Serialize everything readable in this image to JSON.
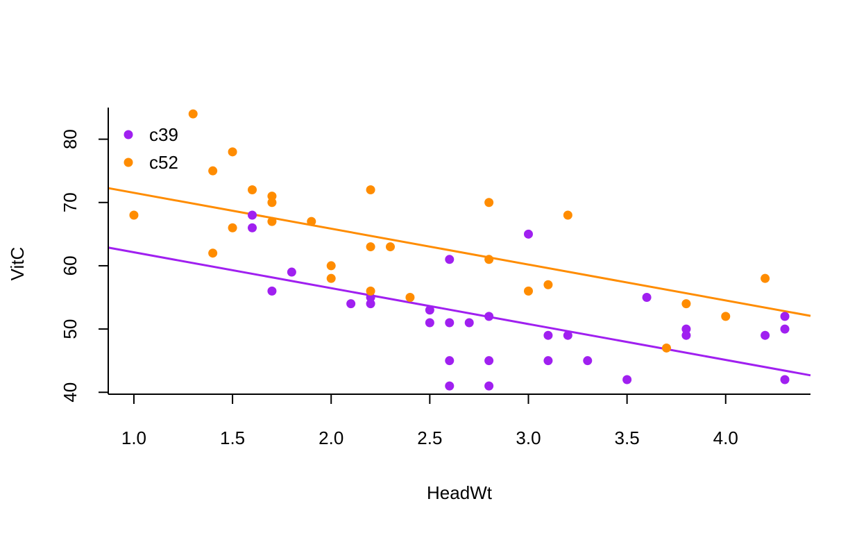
{
  "chart_data": {
    "type": "scatter",
    "title": "",
    "xlabel": "HeadWt",
    "ylabel": "VitC",
    "xlim": [
      0.87,
      4.43
    ],
    "ylim": [
      39.7,
      85.0
    ],
    "xticks": [
      "1.0",
      "1.5",
      "2.0",
      "2.5",
      "3.0",
      "3.5",
      "4.0"
    ],
    "yticks": [
      "40",
      "50",
      "60",
      "70",
      "80"
    ],
    "grid": false,
    "legend_position": "top-left",
    "series": [
      {
        "name": "c39",
        "color": "#A020F0",
        "points": [
          [
            1.6,
            68
          ],
          [
            1.6,
            66
          ],
          [
            1.7,
            56
          ],
          [
            1.8,
            59
          ],
          [
            2.1,
            54
          ],
          [
            2.2,
            54
          ],
          [
            2.2,
            55
          ],
          [
            2.5,
            53
          ],
          [
            2.5,
            51
          ],
          [
            2.6,
            61
          ],
          [
            2.6,
            51
          ],
          [
            2.6,
            45
          ],
          [
            2.6,
            41
          ],
          [
            2.7,
            51
          ],
          [
            2.8,
            52
          ],
          [
            2.8,
            45
          ],
          [
            2.8,
            41
          ],
          [
            3.0,
            65
          ],
          [
            3.1,
            49
          ],
          [
            3.1,
            45
          ],
          [
            3.2,
            49
          ],
          [
            3.3,
            45
          ],
          [
            3.5,
            42
          ],
          [
            3.6,
            55
          ],
          [
            3.8,
            50
          ],
          [
            3.8,
            49
          ],
          [
            4.2,
            49
          ],
          [
            4.3,
            52
          ],
          [
            4.3,
            50
          ],
          [
            4.3,
            42
          ]
        ],
        "fit": {
          "intercept": 67.8,
          "slope": -5.67
        }
      },
      {
        "name": "c52",
        "color": "#FF8C00",
        "points": [
          [
            1.0,
            68
          ],
          [
            1.3,
            84
          ],
          [
            1.4,
            75
          ],
          [
            1.4,
            62
          ],
          [
            1.5,
            78
          ],
          [
            1.5,
            66
          ],
          [
            1.6,
            72
          ],
          [
            1.7,
            71
          ],
          [
            1.7,
            70
          ],
          [
            1.7,
            67
          ],
          [
            1.9,
            67
          ],
          [
            2.0,
            60
          ],
          [
            2.0,
            58
          ],
          [
            2.2,
            72
          ],
          [
            2.2,
            63
          ],
          [
            2.2,
            56
          ],
          [
            2.3,
            63
          ],
          [
            2.4,
            55
          ],
          [
            2.8,
            70
          ],
          [
            2.8,
            61
          ],
          [
            3.0,
            56
          ],
          [
            3.1,
            57
          ],
          [
            3.2,
            68
          ],
          [
            3.7,
            47
          ],
          [
            3.8,
            54
          ],
          [
            4.0,
            52
          ],
          [
            4.2,
            58
          ]
        ],
        "fit": {
          "intercept": 77.2,
          "slope": -5.67
        }
      }
    ]
  }
}
